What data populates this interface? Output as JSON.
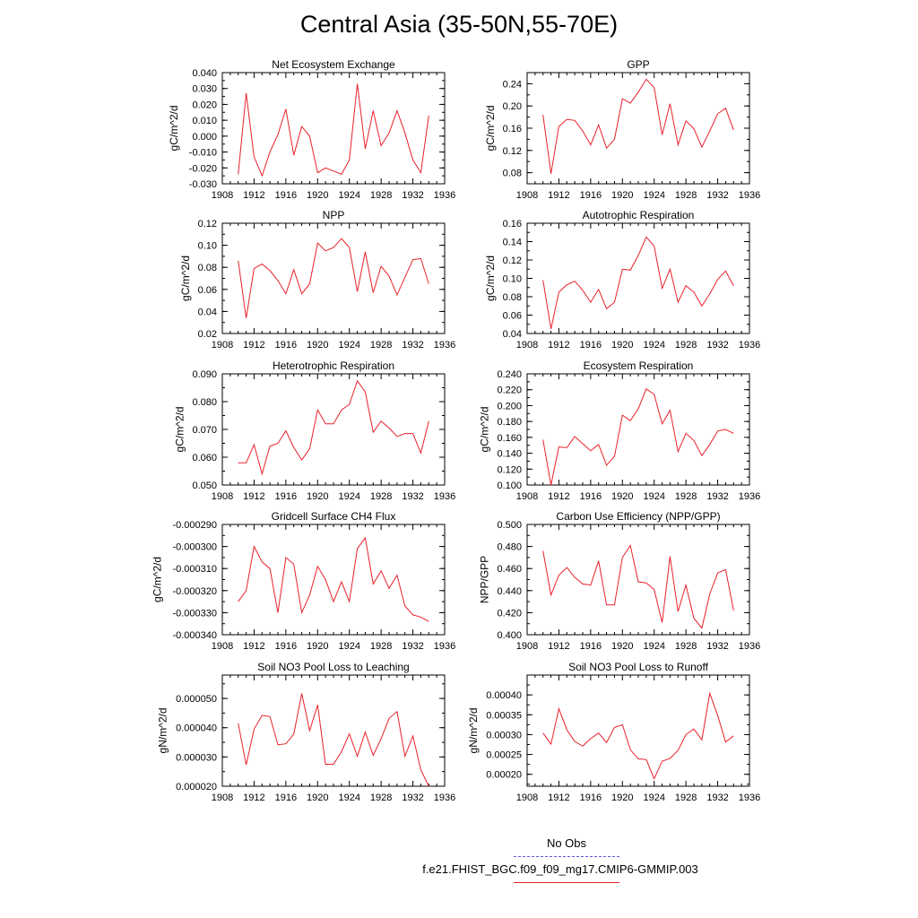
{
  "figure": {
    "title": "Central Asia (35-50N,55-70E)",
    "legend": {
      "obs_label": "No Obs",
      "case_label": "f.e21.FHIST_BGC.f09_f09_mg17.CMIP6-GMMIP.003",
      "obs_color": "#5a5ad8",
      "case_color": "#e8202a"
    }
  },
  "chart_data": [
    {
      "type": "line",
      "title": "Net Ecosystem Exchange",
      "ylabel": "gC/m^2/d",
      "xlim": [
        1908,
        1936
      ],
      "ylim": [
        -0.03,
        0.04
      ],
      "xticks": [
        "1908",
        "1912",
        "1916",
        "1920",
        "1924",
        "1928",
        "1932",
        "1936"
      ],
      "yticks": [
        "-0.030",
        "-0.020",
        "-0.010",
        "0.000",
        "0.010",
        "0.020",
        "0.030",
        "0.040"
      ],
      "x": [
        1910,
        1911,
        1912,
        1913,
        1914,
        1915,
        1916,
        1917,
        1918,
        1919,
        1920,
        1921,
        1922,
        1923,
        1924,
        1925,
        1926,
        1927,
        1928,
        1929,
        1930,
        1931,
        1932,
        1933,
        1934
      ],
      "y": [
        -0.024,
        0.027,
        -0.013,
        -0.025,
        -0.01,
        0.001,
        0.017,
        -0.012,
        0.006,
        0.0,
        -0.023,
        -0.02,
        -0.022,
        -0.024,
        -0.015,
        0.033,
        -0.008,
        0.016,
        -0.006,
        0.002,
        0.016,
        0.002,
        -0.015,
        -0.023,
        0.013
      ],
      "series_color": "#e8202a"
    },
    {
      "type": "line",
      "title": "GPP",
      "ylabel": "gC/m^2/d",
      "xlim": [
        1908,
        1936
      ],
      "ylim": [
        0.06,
        0.26
      ],
      "xticks": [
        "1908",
        "1912",
        "1916",
        "1920",
        "1924",
        "1928",
        "1932",
        "1936"
      ],
      "yticks": [
        "0.08",
        "0.12",
        "0.16",
        "0.20",
        "0.24"
      ],
      "x": [
        1910,
        1911,
        1912,
        1913,
        1914,
        1915,
        1916,
        1917,
        1918,
        1919,
        1920,
        1921,
        1922,
        1923,
        1924,
        1925,
        1926,
        1927,
        1928,
        1929,
        1930,
        1931,
        1932,
        1933,
        1934
      ],
      "y": [
        0.184,
        0.078,
        0.163,
        0.176,
        0.174,
        0.155,
        0.13,
        0.166,
        0.124,
        0.14,
        0.213,
        0.205,
        0.225,
        0.248,
        0.233,
        0.148,
        0.204,
        0.13,
        0.173,
        0.159,
        0.126,
        0.155,
        0.186,
        0.196,
        0.157
      ],
      "series_color": "#e8202a"
    },
    {
      "type": "line",
      "title": "NPP",
      "ylabel": "gC/m^2/d",
      "xlim": [
        1908,
        1936
      ],
      "ylim": [
        0.02,
        0.12
      ],
      "xticks": [
        "1908",
        "1912",
        "1916",
        "1920",
        "1924",
        "1928",
        "1932",
        "1936"
      ],
      "yticks": [
        "0.02",
        "0.04",
        "0.06",
        "0.08",
        "0.10",
        "0.12"
      ],
      "x": [
        1910,
        1911,
        1912,
        1913,
        1914,
        1915,
        1916,
        1917,
        1918,
        1919,
        1920,
        1921,
        1922,
        1923,
        1924,
        1925,
        1926,
        1927,
        1928,
        1929,
        1930,
        1931,
        1932,
        1933,
        1934
      ],
      "y": [
        0.086,
        0.034,
        0.079,
        0.083,
        0.077,
        0.068,
        0.056,
        0.078,
        0.056,
        0.065,
        0.102,
        0.095,
        0.098,
        0.106,
        0.098,
        0.058,
        0.094,
        0.057,
        0.081,
        0.072,
        0.055,
        0.071,
        0.087,
        0.088,
        0.065
      ],
      "series_color": "#e8202a"
    },
    {
      "type": "line",
      "title": "Autotrophic Respiration",
      "ylabel": "gC/m^2/d",
      "xlim": [
        1908,
        1936
      ],
      "ylim": [
        0.04,
        0.16
      ],
      "xticks": [
        "1908",
        "1912",
        "1916",
        "1920",
        "1924",
        "1928",
        "1932",
        "1936"
      ],
      "yticks": [
        "0.04",
        "0.06",
        "0.08",
        "0.10",
        "0.12",
        "0.14",
        "0.16"
      ],
      "x": [
        1910,
        1911,
        1912,
        1913,
        1914,
        1915,
        1916,
        1917,
        1918,
        1919,
        1920,
        1921,
        1922,
        1923,
        1924,
        1925,
        1926,
        1927,
        1928,
        1929,
        1930,
        1931,
        1932,
        1933,
        1934
      ],
      "y": [
        0.098,
        0.045,
        0.085,
        0.093,
        0.097,
        0.087,
        0.074,
        0.088,
        0.067,
        0.074,
        0.11,
        0.109,
        0.125,
        0.145,
        0.135,
        0.089,
        0.11,
        0.074,
        0.092,
        0.085,
        0.07,
        0.083,
        0.099,
        0.108,
        0.092
      ],
      "series_color": "#e8202a"
    },
    {
      "type": "line",
      "title": "Heterotrophic Respiration",
      "ylabel": "gC/m^2/d",
      "xlim": [
        1908,
        1936
      ],
      "ylim": [
        0.05,
        0.09
      ],
      "xticks": [
        "1908",
        "1912",
        "1916",
        "1920",
        "1924",
        "1928",
        "1932",
        "1936"
      ],
      "yticks": [
        "0.050",
        "0.060",
        "0.070",
        "0.080",
        "0.090"
      ],
      "x": [
        1910,
        1911,
        1912,
        1913,
        1914,
        1915,
        1916,
        1917,
        1918,
        1919,
        1920,
        1921,
        1922,
        1923,
        1924,
        1925,
        1926,
        1927,
        1928,
        1929,
        1930,
        1931,
        1932,
        1933,
        1934
      ],
      "y": [
        0.058,
        0.058,
        0.0645,
        0.054,
        0.064,
        0.065,
        0.0695,
        0.0635,
        0.059,
        0.063,
        0.077,
        0.072,
        0.072,
        0.077,
        0.079,
        0.0875,
        0.0835,
        0.069,
        0.073,
        0.0705,
        0.0675,
        0.0685,
        0.0685,
        0.0615,
        0.073
      ],
      "series_color": "#e8202a"
    },
    {
      "type": "line",
      "title": "Ecosystem Respiration",
      "ylabel": "gC/m^2/d",
      "xlim": [
        1908,
        1936
      ],
      "ylim": [
        0.1,
        0.24
      ],
      "xticks": [
        "1908",
        "1912",
        "1916",
        "1920",
        "1924",
        "1928",
        "1932",
        "1936"
      ],
      "yticks": [
        "0.100",
        "0.120",
        "0.140",
        "0.160",
        "0.180",
        "0.200",
        "0.220",
        "0.240"
      ],
      "x": [
        1910,
        1911,
        1912,
        1913,
        1914,
        1915,
        1916,
        1917,
        1918,
        1919,
        1920,
        1921,
        1922,
        1923,
        1924,
        1925,
        1926,
        1927,
        1928,
        1929,
        1930,
        1931,
        1932,
        1933,
        1934
      ],
      "y": [
        0.157,
        0.1,
        0.148,
        0.147,
        0.161,
        0.152,
        0.143,
        0.151,
        0.125,
        0.136,
        0.188,
        0.181,
        0.196,
        0.221,
        0.214,
        0.177,
        0.194,
        0.142,
        0.165,
        0.156,
        0.137,
        0.151,
        0.168,
        0.17,
        0.165
      ],
      "series_color": "#e8202a"
    },
    {
      "type": "line",
      "title": "Gridcell Surface CH4 Flux",
      "ylabel": "gC/m^2/d",
      "xlim": [
        1908,
        1936
      ],
      "ylim": [
        -0.00034,
        -0.00029
      ],
      "xticks": [
        "1908",
        "1912",
        "1916",
        "1920",
        "1924",
        "1928",
        "1932",
        "1936"
      ],
      "yticks": [
        "-0.000340",
        "-0.000330",
        "-0.000320",
        "-0.000310",
        "-0.000300",
        "-0.000290"
      ],
      "x": [
        1910,
        1911,
        1912,
        1913,
        1914,
        1915,
        1916,
        1917,
        1918,
        1919,
        1920,
        1921,
        1922,
        1923,
        1924,
        1925,
        1926,
        1927,
        1928,
        1929,
        1930,
        1931,
        1932,
        1933,
        1934
      ],
      "y": [
        -0.000325,
        -0.00032,
        -0.0003,
        -0.000307,
        -0.00031,
        -0.00033,
        -0.000305,
        -0.000308,
        -0.00033,
        -0.000322,
        -0.000309,
        -0.000315,
        -0.000325,
        -0.000316,
        -0.000325,
        -0.000301,
        -0.000296,
        -0.000317,
        -0.000311,
        -0.000319,
        -0.000313,
        -0.000327,
        -0.000331,
        -0.000332,
        -0.000334
      ],
      "series_color": "#e8202a"
    },
    {
      "type": "line",
      "title": "Carbon Use Efficiency (NPP/GPP)",
      "ylabel": "NPP/GPP",
      "xlim": [
        1908,
        1936
      ],
      "ylim": [
        0.4,
        0.5
      ],
      "xticks": [
        "1908",
        "1912",
        "1916",
        "1920",
        "1924",
        "1928",
        "1932",
        "1936"
      ],
      "yticks": [
        "0.400",
        "0.420",
        "0.440",
        "0.460",
        "0.480",
        "0.500"
      ],
      "x": [
        1910,
        1911,
        1912,
        1913,
        1914,
        1915,
        1916,
        1917,
        1918,
        1919,
        1920,
        1921,
        1922,
        1923,
        1924,
        1925,
        1926,
        1927,
        1928,
        1929,
        1930,
        1931,
        1932,
        1933,
        1934
      ],
      "y": [
        0.476,
        0.436,
        0.454,
        0.461,
        0.452,
        0.446,
        0.445,
        0.467,
        0.427,
        0.427,
        0.47,
        0.481,
        0.448,
        0.447,
        0.441,
        0.411,
        0.471,
        0.421,
        0.445,
        0.415,
        0.406,
        0.437,
        0.456,
        0.459,
        0.422
      ],
      "series_color": "#e8202a"
    },
    {
      "type": "line",
      "title": "Soil NO3 Pool Loss to Leaching",
      "ylabel": "gN/m^2/d",
      "xlim": [
        1908,
        1936
      ],
      "ylim": [
        2e-05,
        5.8e-05
      ],
      "xticks": [
        "1908",
        "1912",
        "1916",
        "1920",
        "1924",
        "1928",
        "1932",
        "1936"
      ],
      "yticks": [
        "0.000020",
        "0.000030",
        "0.000040",
        "0.000050"
      ],
      "x": [
        1910,
        1911,
        1912,
        1913,
        1914,
        1915,
        1916,
        1917,
        1918,
        1919,
        1920,
        1921,
        1922,
        1923,
        1924,
        1925,
        1926,
        1927,
        1928,
        1929,
        1930,
        1931,
        1932,
        1933,
        1934
      ],
      "y": [
        4.15e-05,
        2.73e-05,
        3.95e-05,
        4.42e-05,
        4.38e-05,
        3.42e-05,
        3.45e-05,
        3.78e-05,
        5.17e-05,
        3.9e-05,
        4.78e-05,
        2.75e-05,
        2.75e-05,
        3.18e-05,
        3.79e-05,
        3.02e-05,
        3.85e-05,
        3.05e-05,
        3.62e-05,
        4.32e-05,
        4.55e-05,
        3.02e-05,
        3.72e-05,
        2.56e-05,
        2e-05
      ],
      "series_color": "#e8202a"
    },
    {
      "type": "line",
      "title": "Soil NO3 Pool Loss to Runoff",
      "ylabel": "gN/m^2/d",
      "xlim": [
        1908,
        1936
      ],
      "ylim": [
        0.00017,
        0.00045
      ],
      "xticks": [
        "1908",
        "1912",
        "1916",
        "1920",
        "1924",
        "1928",
        "1932",
        "1936"
      ],
      "yticks": [
        "0.00020",
        "0.00025",
        "0.00030",
        "0.00035",
        "0.00040"
      ],
      "x": [
        1910,
        1911,
        1912,
        1913,
        1914,
        1915,
        1916,
        1917,
        1918,
        1919,
        1920,
        1921,
        1922,
        1923,
        1924,
        1925,
        1926,
        1927,
        1928,
        1929,
        1930,
        1931,
        1932,
        1933,
        1934
      ],
      "y": [
        0.000304,
        0.000276,
        0.000365,
        0.000312,
        0.000283,
        0.000271,
        0.00029,
        0.000304,
        0.00028,
        0.000318,
        0.000325,
        0.000262,
        0.000239,
        0.000237,
        0.000189,
        0.000233,
        0.00024,
        0.00026,
        0.0003,
        0.000314,
        0.000287,
        0.000404,
        0.000348,
        0.000281,
        0.000297
      ],
      "series_color": "#e8202a"
    }
  ]
}
